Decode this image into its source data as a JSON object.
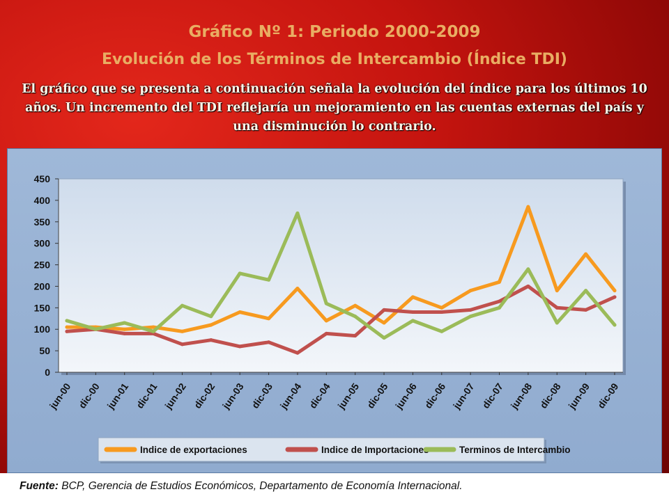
{
  "title_line1": "Gráfico Nº 1:   Periodo 2000-2009",
  "title_line2": "Evolución de los Términos de Intercambio (Índice TDI)",
  "description": "El gráfico que se presenta a continuación señala la evolución del índice para los últimos 10 años. Un incremento del TDI reflejaría un mejoramiento en las cuentas externas del país y una disminución lo contrario.",
  "footer": {
    "label": "Fuente:",
    "text": " BCP, Gerencia de Estudios Económicos, Departamento de Economía Internacional."
  },
  "chart_data": {
    "type": "line",
    "x": [
      "jun-00",
      "dic-00",
      "jun-01",
      "dic-01",
      "jun-02",
      "dic-02",
      "jun-03",
      "dic-03",
      "jun-04",
      "dic-04",
      "jun-05",
      "dic-05",
      "jun-06",
      "dic-06",
      "jun-07",
      "dic-07",
      "jun-08",
      "dic-08",
      "jun-09",
      "dic-09"
    ],
    "ylim": [
      0,
      450
    ],
    "yticks": [
      "0",
      "50",
      "100",
      "150",
      "200",
      "250",
      "300",
      "350",
      "400",
      "450"
    ],
    "grid": false,
    "legend_position": "bottom",
    "series": [
      {
        "name": "Indice de exportaciones",
        "color": "#f79a1f",
        "values": [
          105,
          105,
          100,
          105,
          95,
          110,
          140,
          125,
          195,
          120,
          155,
          115,
          175,
          150,
          190,
          210,
          385,
          190,
          275,
          190
        ]
      },
      {
        "name": "Indice de Importaciones",
        "color": "#c0504d",
        "values": [
          95,
          100,
          90,
          90,
          65,
          75,
          60,
          70,
          45,
          90,
          85,
          145,
          140,
          140,
          145,
          165,
          200,
          150,
          145,
          175
        ]
      },
      {
        "name": "Terminos de Intercambio",
        "color": "#9bbb59",
        "values": [
          120,
          100,
          115,
          95,
          155,
          130,
          230,
          215,
          370,
          160,
          130,
          80,
          120,
          95,
          130,
          150,
          240,
          115,
          190,
          110
        ]
      }
    ]
  }
}
